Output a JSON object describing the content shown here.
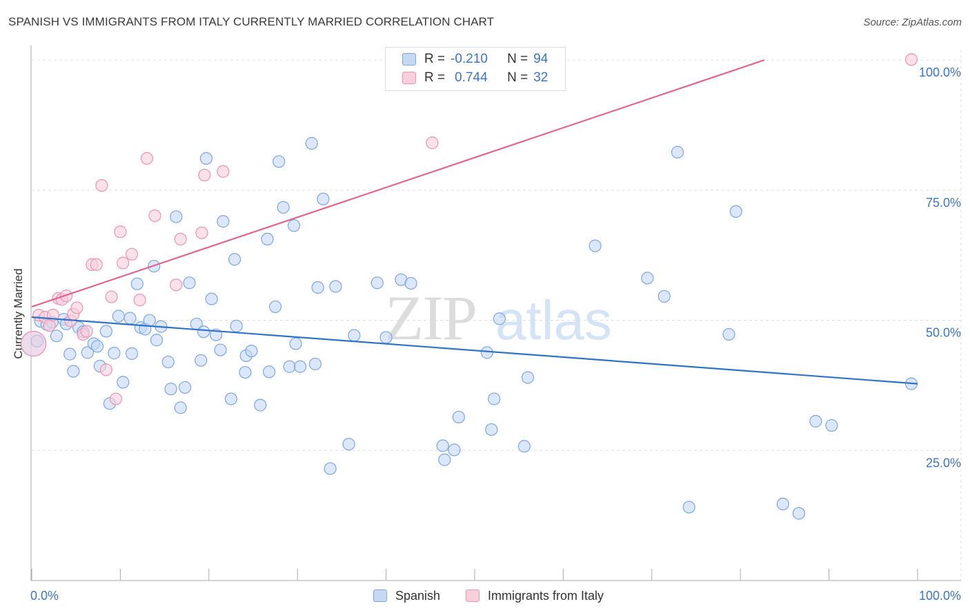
{
  "title": "SPANISH VS IMMIGRANTS FROM ITALY CURRENTLY MARRIED CORRELATION CHART",
  "source": "Source: ZipAtlas.com",
  "watermark": {
    "zip": "ZIP",
    "atlas": "atlas"
  },
  "legend_top": {
    "r_label": "R =",
    "n_label": "N =",
    "rows": [
      {
        "r": "-0.210",
        "n": "94"
      },
      {
        "r": "0.744",
        "n": "32"
      }
    ]
  },
  "colors": {
    "blue_fill": "#c5d9f5",
    "blue_stroke": "#7aa6e4",
    "blue_line": "#2f73c9",
    "pink_fill": "#f9cfdc",
    "pink_stroke": "#ec92b0",
    "pink_line": "#e0668f",
    "tick_label": "#3a75c9"
  },
  "chart_data": {
    "type": "scatter",
    "title": "SPANISH VS IMMIGRANTS FROM ITALY CURRENTLY MARRIED CORRELATION CHART",
    "ylabel": "Currently Married",
    "xlabel": "",
    "xlim": [
      0,
      100
    ],
    "ylim": [
      0,
      102
    ],
    "x_tick_labels": [
      "0.0%",
      "100.0%"
    ],
    "y_ticks": [
      25,
      50,
      75,
      100
    ],
    "y_tick_labels": [
      "25.0%",
      "50.0%",
      "75.0%",
      "100.0%"
    ],
    "grid": true,
    "legend_position": "bottom-center",
    "series": [
      {
        "name": "Spanish",
        "color": "#7aa6e4",
        "trend": {
          "x": [
            0,
            100
          ],
          "y": [
            50.6,
            37.8
          ]
        },
        "points": [
          {
            "x": 0.2,
            "y": 45.5,
            "big": true
          },
          {
            "x": 1.0,
            "y": 49.8
          },
          {
            "x": 1.7,
            "y": 49.2
          },
          {
            "x": 2.3,
            "y": 49.6
          },
          {
            "x": 2.8,
            "y": 47.0
          },
          {
            "x": 3.6,
            "y": 50.2
          },
          {
            "x": 3.9,
            "y": 49.3
          },
          {
            "x": 4.3,
            "y": 43.5
          },
          {
            "x": 4.7,
            "y": 40.2
          },
          {
            "x": 5.3,
            "y": 48.6
          },
          {
            "x": 5.8,
            "y": 47.8
          },
          {
            "x": 6.3,
            "y": 43.8
          },
          {
            "x": 7.0,
            "y": 45.5
          },
          {
            "x": 7.4,
            "y": 45.0
          },
          {
            "x": 7.7,
            "y": 41.2
          },
          {
            "x": 8.4,
            "y": 47.9
          },
          {
            "x": 8.8,
            "y": 34.0
          },
          {
            "x": 9.3,
            "y": 43.7
          },
          {
            "x": 9.8,
            "y": 50.8
          },
          {
            "x": 10.3,
            "y": 38.1
          },
          {
            "x": 11.1,
            "y": 50.4
          },
          {
            "x": 11.3,
            "y": 43.6
          },
          {
            "x": 11.9,
            "y": 57.0
          },
          {
            "x": 12.3,
            "y": 48.6
          },
          {
            "x": 12.8,
            "y": 48.3
          },
          {
            "x": 13.3,
            "y": 50.0
          },
          {
            "x": 13.8,
            "y": 60.4
          },
          {
            "x": 14.1,
            "y": 46.2
          },
          {
            "x": 14.6,
            "y": 48.8
          },
          {
            "x": 15.4,
            "y": 42.0
          },
          {
            "x": 15.7,
            "y": 36.8
          },
          {
            "x": 16.3,
            "y": 69.9
          },
          {
            "x": 16.8,
            "y": 33.2
          },
          {
            "x": 17.3,
            "y": 37.1
          },
          {
            "x": 17.8,
            "y": 57.2
          },
          {
            "x": 18.6,
            "y": 49.3
          },
          {
            "x": 19.1,
            "y": 42.3
          },
          {
            "x": 19.4,
            "y": 47.8
          },
          {
            "x": 19.7,
            "y": 81.1
          },
          {
            "x": 20.3,
            "y": 54.1
          },
          {
            "x": 20.8,
            "y": 47.2
          },
          {
            "x": 21.3,
            "y": 44.3
          },
          {
            "x": 21.6,
            "y": 69.0
          },
          {
            "x": 22.5,
            "y": 34.9
          },
          {
            "x": 22.9,
            "y": 61.7
          },
          {
            "x": 23.1,
            "y": 48.9
          },
          {
            "x": 24.1,
            "y": 40.0
          },
          {
            "x": 24.2,
            "y": 43.2
          },
          {
            "x": 24.8,
            "y": 44.1
          },
          {
            "x": 25.8,
            "y": 33.7
          },
          {
            "x": 26.6,
            "y": 65.6
          },
          {
            "x": 26.8,
            "y": 40.1
          },
          {
            "x": 27.5,
            "y": 52.6
          },
          {
            "x": 27.9,
            "y": 80.5
          },
          {
            "x": 28.4,
            "y": 71.7
          },
          {
            "x": 29.1,
            "y": 41.1
          },
          {
            "x": 29.6,
            "y": 68.2
          },
          {
            "x": 29.8,
            "y": 45.5
          },
          {
            "x": 30.3,
            "y": 41.1
          },
          {
            "x": 31.6,
            "y": 84.0
          },
          {
            "x": 32.0,
            "y": 41.6
          },
          {
            "x": 32.3,
            "y": 56.3
          },
          {
            "x": 32.9,
            "y": 73.3
          },
          {
            "x": 33.7,
            "y": 21.5
          },
          {
            "x": 34.3,
            "y": 56.5
          },
          {
            "x": 35.8,
            "y": 26.2
          },
          {
            "x": 36.4,
            "y": 47.1
          },
          {
            "x": 39.0,
            "y": 57.2
          },
          {
            "x": 40.0,
            "y": 46.7
          },
          {
            "x": 41.7,
            "y": 57.8
          },
          {
            "x": 42.8,
            "y": 57.1
          },
          {
            "x": 46.4,
            "y": 25.9
          },
          {
            "x": 46.6,
            "y": 23.2
          },
          {
            "x": 47.7,
            "y": 25.1
          },
          {
            "x": 48.2,
            "y": 31.4
          },
          {
            "x": 51.4,
            "y": 43.8
          },
          {
            "x": 51.9,
            "y": 29.0
          },
          {
            "x": 52.2,
            "y": 34.9
          },
          {
            "x": 52.8,
            "y": 50.3
          },
          {
            "x": 55.6,
            "y": 25.8
          },
          {
            "x": 56.0,
            "y": 39.0
          },
          {
            "x": 63.6,
            "y": 64.3
          },
          {
            "x": 69.5,
            "y": 58.1
          },
          {
            "x": 71.4,
            "y": 54.6
          },
          {
            "x": 72.9,
            "y": 82.3
          },
          {
            "x": 74.2,
            "y": 14.1
          },
          {
            "x": 78.7,
            "y": 47.3
          },
          {
            "x": 79.5,
            "y": 70.9
          },
          {
            "x": 84.8,
            "y": 14.7
          },
          {
            "x": 86.6,
            "y": 12.9
          },
          {
            "x": 88.5,
            "y": 30.6
          },
          {
            "x": 90.3,
            "y": 29.8
          },
          {
            "x": 99.3,
            "y": 37.8
          },
          {
            "x": 0.6,
            "y": 46.0
          }
        ]
      },
      {
        "name": "Immigrants from Italy",
        "color": "#ec92b0",
        "trend": {
          "x": [
            0,
            82.7
          ],
          "y": [
            52.6,
            100.0
          ]
        },
        "points": [
          {
            "x": 0.8,
            "y": 51.0
          },
          {
            "x": 1.5,
            "y": 50.6
          },
          {
            "x": 2.0,
            "y": 49.0
          },
          {
            "x": 2.4,
            "y": 51.0
          },
          {
            "x": 3.0,
            "y": 54.2
          },
          {
            "x": 3.4,
            "y": 54.0
          },
          {
            "x": 3.9,
            "y": 54.7
          },
          {
            "x": 4.4,
            "y": 49.9
          },
          {
            "x": 4.7,
            "y": 51.2
          },
          {
            "x": 5.1,
            "y": 52.4
          },
          {
            "x": 5.8,
            "y": 47.3
          },
          {
            "x": 6.2,
            "y": 47.9
          },
          {
            "x": 6.8,
            "y": 60.7
          },
          {
            "x": 7.3,
            "y": 60.7
          },
          {
            "x": 7.9,
            "y": 75.9
          },
          {
            "x": 8.4,
            "y": 40.5
          },
          {
            "x": 9.0,
            "y": 54.5
          },
          {
            "x": 9.5,
            "y": 34.9
          },
          {
            "x": 10.0,
            "y": 67.0
          },
          {
            "x": 10.3,
            "y": 61.0
          },
          {
            "x": 11.3,
            "y": 62.7
          },
          {
            "x": 12.2,
            "y": 53.9
          },
          {
            "x": 13.0,
            "y": 81.1
          },
          {
            "x": 13.9,
            "y": 70.1
          },
          {
            "x": 16.3,
            "y": 56.8
          },
          {
            "x": 16.8,
            "y": 65.6
          },
          {
            "x": 19.2,
            "y": 66.8
          },
          {
            "x": 19.5,
            "y": 77.9
          },
          {
            "x": 21.6,
            "y": 78.6
          },
          {
            "x": 45.2,
            "y": 84.1
          },
          {
            "x": 99.3,
            "y": 100.1
          },
          {
            "x": 0.2,
            "y": 45.5,
            "big": true
          }
        ]
      }
    ]
  },
  "bottom_legend": [
    "Spanish",
    "Immigrants from Italy"
  ]
}
